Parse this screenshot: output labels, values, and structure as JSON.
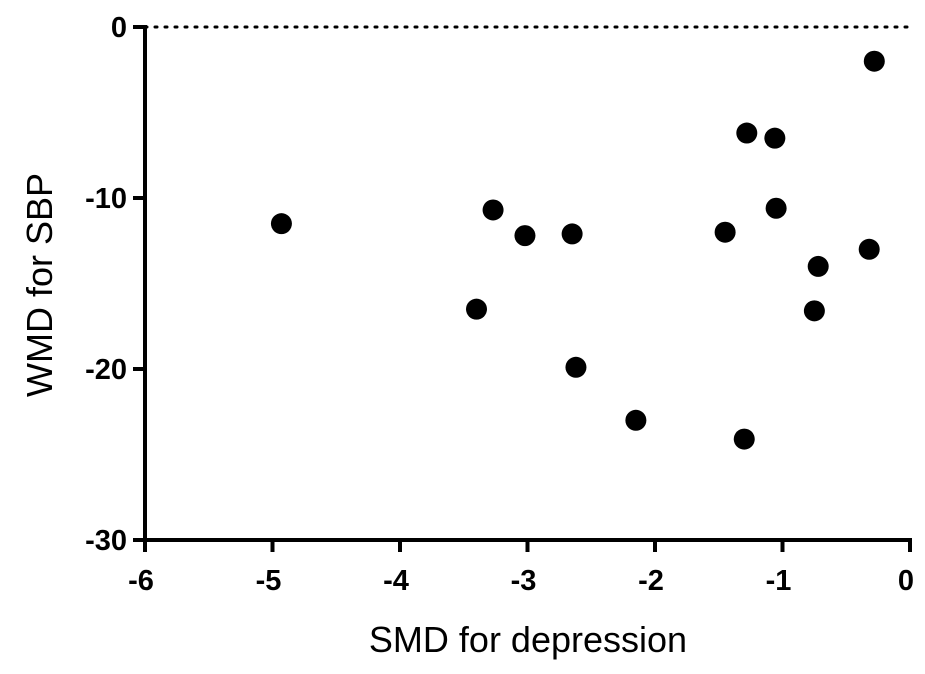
{
  "chart_data": {
    "type": "scatter",
    "title": "",
    "xlabel": "SMD for depression",
    "ylabel": "WMD for SBP",
    "xlim": [
      -6,
      0
    ],
    "ylim": [
      -30,
      0
    ],
    "x_ticks": [
      -6,
      -5,
      -4,
      -3,
      -2,
      -1,
      0
    ],
    "x_tick_labels": [
      "-6",
      "-5",
      "-4",
      "-3",
      "-2",
      "-1",
      "0"
    ],
    "y_ticks": [
      0,
      -10,
      -20,
      -30
    ],
    "y_tick_labels": [
      "0",
      "-10",
      "-20",
      "-30"
    ],
    "reference_line": {
      "y": 0,
      "style": "dotted"
    },
    "grid": false,
    "legend": "none",
    "marker_color": "#000000",
    "series": [
      {
        "points": [
          {
            "x": -4.93,
            "y": -11.5
          },
          {
            "x": -3.4,
            "y": -16.5
          },
          {
            "x": -3.27,
            "y": -10.7
          },
          {
            "x": -3.02,
            "y": -12.2
          },
          {
            "x": -2.65,
            "y": -12.1
          },
          {
            "x": -2.62,
            "y": -19.9
          },
          {
            "x": -2.15,
            "y": -23.0
          },
          {
            "x": -1.45,
            "y": -12.0
          },
          {
            "x": -1.3,
            "y": -24.1
          },
          {
            "x": -1.28,
            "y": -6.2
          },
          {
            "x": -1.06,
            "y": -6.5
          },
          {
            "x": -1.05,
            "y": -10.6
          },
          {
            "x": -0.75,
            "y": -16.6
          },
          {
            "x": -0.72,
            "y": -14.0
          },
          {
            "x": -0.32,
            "y": -13.0
          },
          {
            "x": -0.28,
            "y": -2.0
          }
        ]
      }
    ]
  }
}
